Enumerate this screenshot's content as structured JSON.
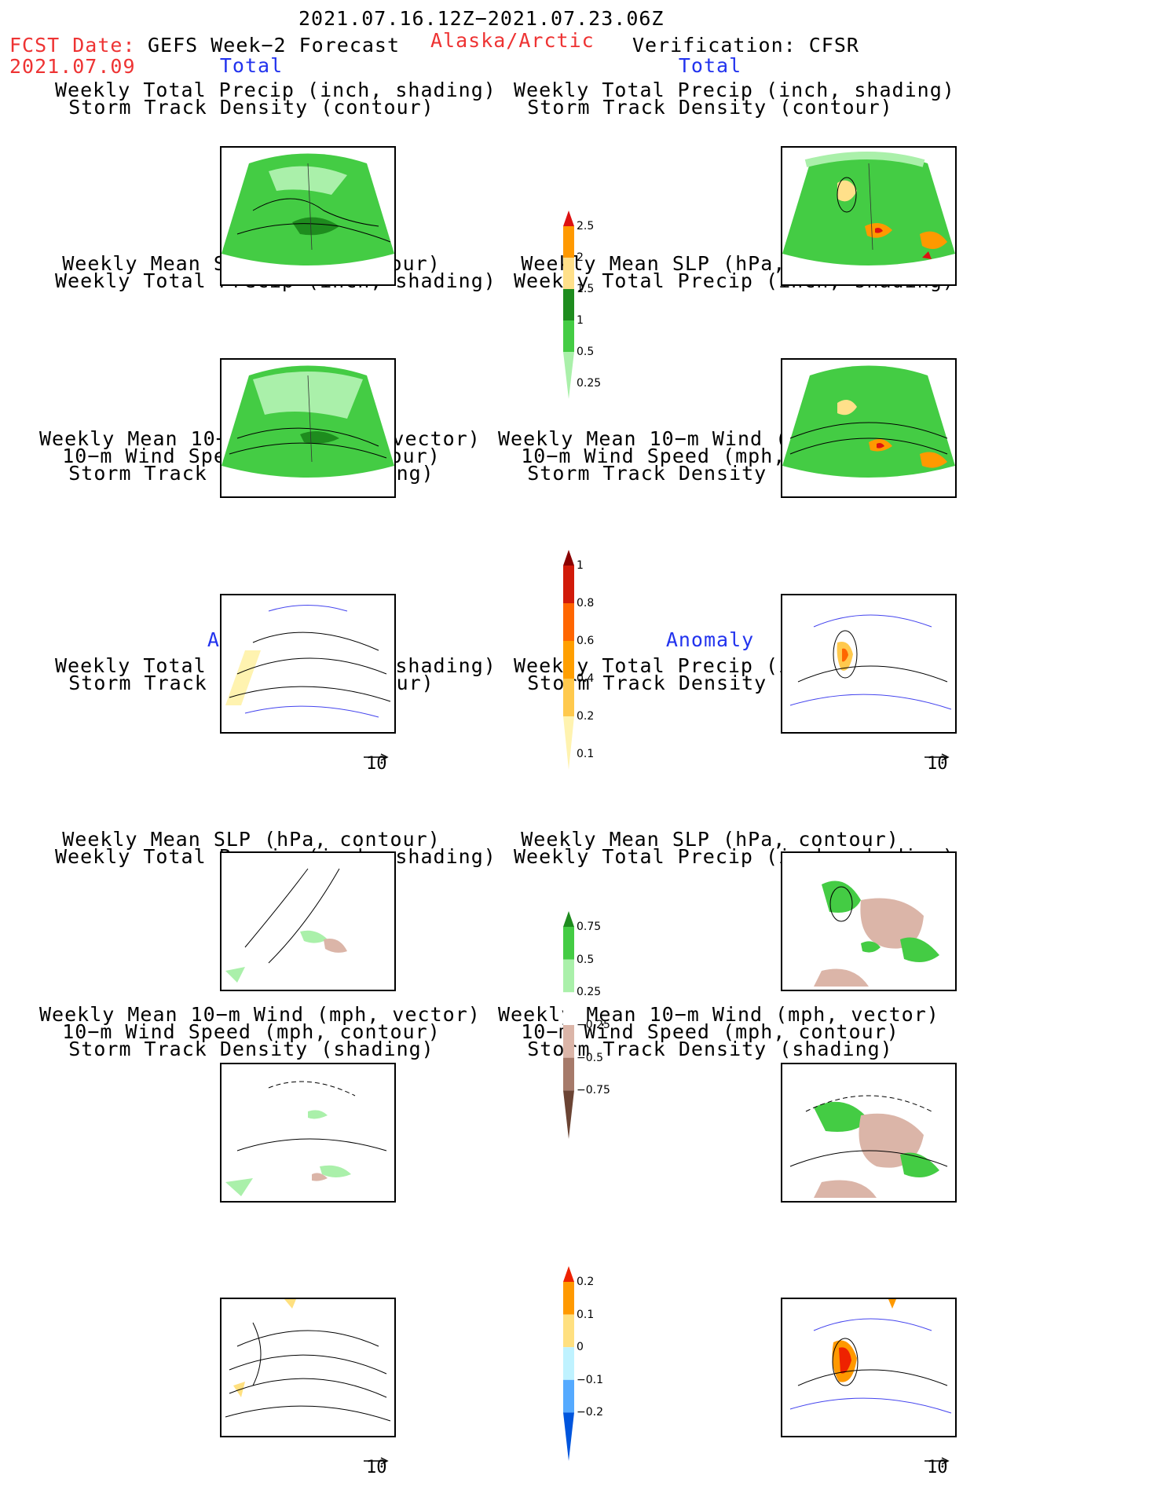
{
  "header": {
    "period": "2021.07.16.12Z−2021.07.23.06Z",
    "fcst_label": "FCST Date:",
    "fcst_date": "2021.07.09",
    "model": "GEFS Week−2 Forecast",
    "region": "Alaska/Arctic",
    "verification": "Verification: CFSR"
  },
  "sections": {
    "total": "Total",
    "anomaly": "Anomaly"
  },
  "panel_titles": {
    "precip_track": [
      "Weekly Total Precip (inch, shading)",
      "Storm Track Density (contour)"
    ],
    "slp_precip": [
      "Weekly Mean SLP (hPa, contour)",
      "Weekly Total Precip (inch, shading)"
    ],
    "wind_track": [
      "Weekly Mean 10−m Wind (mph, vector)",
      "10−m Wind Speed (mph, contour)",
      "Storm Track Density (shading)"
    ]
  },
  "vector_reference": "10",
  "colorbars": {
    "precip_total": {
      "labels": [
        "2.5",
        "2",
        "1.5",
        "1",
        "0.5",
        "0.25"
      ],
      "colors": [
        "#dd1111",
        "#ff9900",
        "#ffe08a",
        "#1e8c1e",
        "#44cc44",
        "#aaf0aa"
      ]
    },
    "track_total": {
      "labels": [
        "1",
        "0.8",
        "0.6",
        "0.4",
        "0.2",
        "0.1"
      ],
      "colors": [
        "#8b0000",
        "#d11a0a",
        "#ff6600",
        "#ff9f00",
        "#ffc94d",
        "#fff3b0"
      ]
    },
    "precip_anom": {
      "labels": [
        "0.75",
        "0.5",
        "0.25",
        "−0.25",
        "−0.5",
        "−0.75"
      ],
      "colors": [
        "#1e8c1e",
        "#44cc44",
        "#aaf0aa",
        "#ffffff",
        "#dbb5a8",
        "#a67a6a",
        "#6b4434"
      ]
    },
    "track_anom": {
      "labels": [
        "0.2",
        "0.1",
        "0",
        "−0.1",
        "−0.2"
      ],
      "colors": [
        "#ee2200",
        "#ff9900",
        "#ffe080",
        "#bff2ff",
        "#55aaff",
        "#0055dd"
      ]
    }
  }
}
